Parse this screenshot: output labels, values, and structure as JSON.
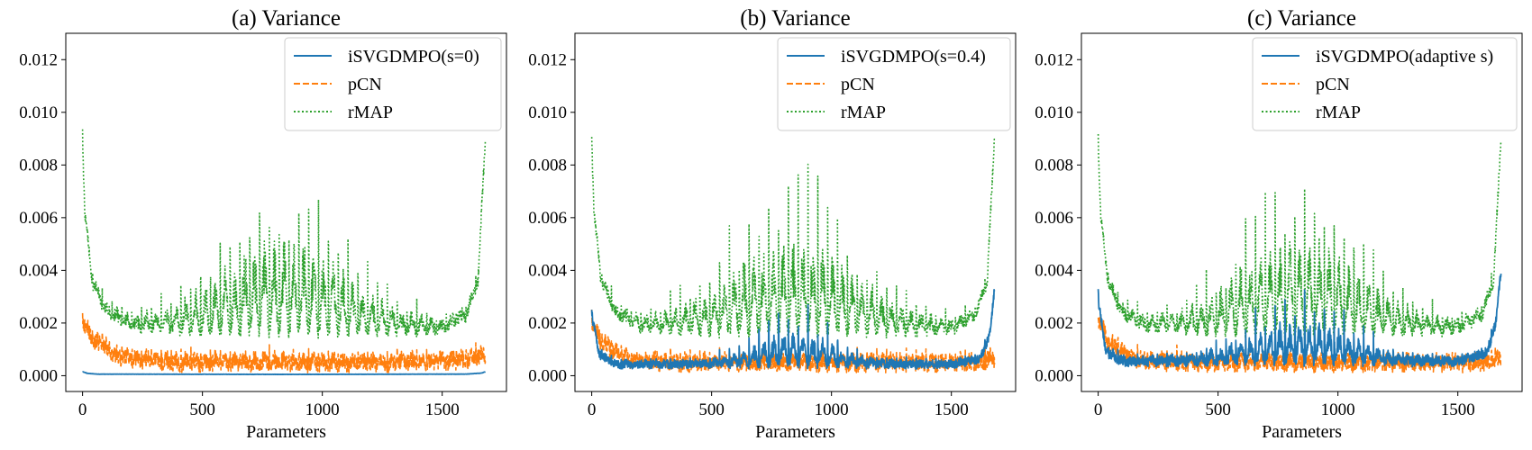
{
  "colors": {
    "isvgd": "#1f77b4",
    "pcn": "#ff7f0e",
    "rmap": "#2ca02c",
    "axis": "#000000",
    "legend_border": "#cccccc"
  },
  "chart_data": [
    {
      "type": "line",
      "title": "(a) Variance",
      "xlabel": "Parameters",
      "ylabel": "",
      "xlim": [
        -70,
        1768
      ],
      "ylim": [
        -0.0006,
        0.013
      ],
      "xticks": [
        0,
        500,
        1000,
        1500
      ],
      "xtick_labels": [
        "0",
        "500",
        "1000",
        "1500"
      ],
      "yticks": [
        0,
        0.002,
        0.004,
        0.006,
        0.008,
        0.01,
        0.012
      ],
      "ytick_labels": [
        "0.000",
        "0.002",
        "0.004",
        "0.006",
        "0.008",
        "0.010",
        "0.012"
      ],
      "legend_location": "top-right",
      "n_params": 1681,
      "series": [
        {
          "key": "isvgd",
          "name": "iSVGDMPO(s=0)",
          "style": "solid",
          "profile": [
            [
              0,
              0.00015
            ],
            [
              20,
              9e-05
            ],
            [
              60,
              6e-05
            ],
            [
              840,
              5e-05
            ],
            [
              1600,
              6e-05
            ],
            [
              1665,
              0.0001
            ],
            [
              1680,
              0.00015
            ]
          ],
          "spike_amplitude": 0.0,
          "spike_period": 41,
          "noise": 5e-06
        },
        {
          "key": "pcn",
          "name": "pCN",
          "style": "dashed",
          "profile": [
            [
              0,
              0.0019
            ],
            [
              40,
              0.0013
            ],
            [
              150,
              0.0006
            ],
            [
              400,
              0.0004
            ],
            [
              840,
              0.0004
            ],
            [
              1300,
              0.0004
            ],
            [
              1600,
              0.0005
            ],
            [
              1680,
              0.0007
            ]
          ],
          "spike_amplitude": 0.0009,
          "spike_period": 41,
          "noise": 0.0003
        },
        {
          "key": "rmap",
          "name": "rMAP",
          "style": "dotted",
          "profile": [
            [
              0,
              0.0087
            ],
            [
              10,
              0.006
            ],
            [
              40,
              0.0035
            ],
            [
              100,
              0.0023
            ],
            [
              200,
              0.0018
            ],
            [
              500,
              0.0016
            ],
            [
              840,
              0.0016
            ],
            [
              1200,
              0.0016
            ],
            [
              1500,
              0.0017
            ],
            [
              1600,
              0.0022
            ],
            [
              1650,
              0.0035
            ],
            [
              1680,
              0.009
            ]
          ],
          "spike_amplitude": 0.0105,
          "spike_period": 41,
          "spike_center": 840,
          "spike_width": 260,
          "spike_floor": 0.0008,
          "noise": 0.0002
        }
      ]
    },
    {
      "type": "line",
      "title": "(b) Variance",
      "xlabel": "Parameters",
      "ylabel": "",
      "xlim": [
        -70,
        1768
      ],
      "ylim": [
        -0.0006,
        0.013
      ],
      "xticks": [
        0,
        500,
        1000,
        1500
      ],
      "xtick_labels": [
        "0",
        "500",
        "1000",
        "1500"
      ],
      "yticks": [
        0,
        0.002,
        0.004,
        0.006,
        0.008,
        0.01,
        0.012
      ],
      "ytick_labels": [
        "0.000",
        "0.002",
        "0.004",
        "0.006",
        "0.008",
        "0.010",
        "0.012"
      ],
      "legend_location": "top-right",
      "n_params": 1681,
      "series": [
        {
          "key": "isvgd",
          "name": "iSVGDMPO(s=0.4)",
          "style": "solid",
          "profile": [
            [
              0,
              0.0023
            ],
            [
              30,
              0.0008
            ],
            [
              100,
              0.0004
            ],
            [
              840,
              0.0004
            ],
            [
              1500,
              0.0004
            ],
            [
              1620,
              0.0006
            ],
            [
              1660,
              0.0015
            ],
            [
              1680,
              0.0033
            ]
          ],
          "spike_amplitude": 0.0038,
          "spike_period": 41,
          "spike_center": 840,
          "spike_width": 150,
          "spike_floor": 0.0003,
          "noise": 0.00015
        },
        {
          "key": "pcn",
          "name": "pCN",
          "style": "dashed",
          "profile": [
            [
              0,
              0.0019
            ],
            [
              40,
              0.0012
            ],
            [
              150,
              0.0005
            ],
            [
              400,
              0.0004
            ],
            [
              840,
              0.0004
            ],
            [
              1300,
              0.0004
            ],
            [
              1600,
              0.0004
            ],
            [
              1680,
              0.0006
            ]
          ],
          "spike_amplitude": 0.0008,
          "spike_period": 41,
          "noise": 0.0003
        },
        {
          "key": "rmap",
          "name": "rMAP",
          "style": "dotted",
          "profile": [
            [
              0,
              0.0087
            ],
            [
              10,
              0.006
            ],
            [
              40,
              0.0035
            ],
            [
              100,
              0.0023
            ],
            [
              200,
              0.0018
            ],
            [
              500,
              0.0016
            ],
            [
              840,
              0.0016
            ],
            [
              1200,
              0.0016
            ],
            [
              1500,
              0.0017
            ],
            [
              1600,
              0.0022
            ],
            [
              1650,
              0.0035
            ],
            [
              1680,
              0.009
            ]
          ],
          "spike_amplitude": 0.0105,
          "spike_period": 41,
          "spike_center": 840,
          "spike_width": 260,
          "spike_floor": 0.0008,
          "noise": 0.0002
        }
      ]
    },
    {
      "type": "line",
      "title": "(c) Variance",
      "xlabel": "Parameters",
      "ylabel": "",
      "xlim": [
        -70,
        1768
      ],
      "ylim": [
        -0.0006,
        0.013
      ],
      "xticks": [
        0,
        500,
        1000,
        1500
      ],
      "xtick_labels": [
        "0",
        "500",
        "1000",
        "1500"
      ],
      "yticks": [
        0,
        0.002,
        0.004,
        0.006,
        0.008,
        0.01,
        0.012
      ],
      "ytick_labels": [
        "0.000",
        "0.002",
        "0.004",
        "0.006",
        "0.008",
        "0.010",
        "0.012"
      ],
      "legend_location": "top-right",
      "n_params": 1681,
      "series": [
        {
          "key": "isvgd",
          "name": "iSVGDMPO(adaptive s)",
          "style": "solid",
          "profile": [
            [
              0,
              0.0029
            ],
            [
              30,
              0.0009
            ],
            [
              100,
              0.0005
            ],
            [
              840,
              0.0005
            ],
            [
              1500,
              0.0005
            ],
            [
              1620,
              0.0008
            ],
            [
              1660,
              0.002
            ],
            [
              1680,
              0.004
            ]
          ],
          "spike_amplitude": 0.0045,
          "spike_period": 41,
          "spike_center": 840,
          "spike_width": 200,
          "spike_floor": 0.0004,
          "noise": 0.00018
        },
        {
          "key": "pcn",
          "name": "pCN",
          "style": "dashed",
          "profile": [
            [
              0,
              0.002
            ],
            [
              40,
              0.0012
            ],
            [
              150,
              0.0005
            ],
            [
              400,
              0.0004
            ],
            [
              840,
              0.0004
            ],
            [
              1300,
              0.0004
            ],
            [
              1600,
              0.0004
            ],
            [
              1680,
              0.0006
            ]
          ],
          "spike_amplitude": 0.0008,
          "spike_period": 41,
          "noise": 0.0003
        },
        {
          "key": "rmap",
          "name": "rMAP",
          "style": "dotted",
          "profile": [
            [
              0,
              0.0087
            ],
            [
              10,
              0.006
            ],
            [
              40,
              0.0035
            ],
            [
              100,
              0.0023
            ],
            [
              200,
              0.0018
            ],
            [
              500,
              0.0016
            ],
            [
              840,
              0.0016
            ],
            [
              1200,
              0.0016
            ],
            [
              1500,
              0.0017
            ],
            [
              1600,
              0.0022
            ],
            [
              1650,
              0.0035
            ],
            [
              1680,
              0.009
            ]
          ],
          "spike_amplitude": 0.0105,
          "spike_period": 41,
          "spike_center": 840,
          "spike_width": 260,
          "spike_floor": 0.0008,
          "noise": 0.0002
        }
      ]
    }
  ]
}
